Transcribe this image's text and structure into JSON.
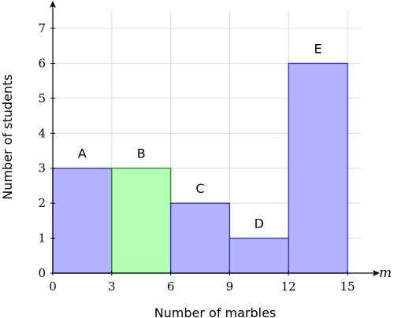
{
  "chart_data": {
    "type": "bar",
    "xlabel": "Number of marbles",
    "ylabel": "Number of students",
    "x_axis_variable": "m",
    "xlim": [
      0,
      15
    ],
    "ylim": [
      0,
      7
    ],
    "x_ticks": [
      0,
      3,
      6,
      9,
      12,
      15
    ],
    "y_ticks": [
      0,
      1,
      2,
      3,
      4,
      5,
      6,
      7
    ],
    "grid": true,
    "bars": [
      {
        "label": "A",
        "x_start": 0,
        "x_end": 3,
        "value": 3,
        "color": "#b3b3ff",
        "edge": "#2a2acf"
      },
      {
        "label": "B",
        "x_start": 3,
        "x_end": 6,
        "value": 3,
        "color": "#b3ffb3",
        "edge": "#1f8c1f"
      },
      {
        "label": "C",
        "x_start": 6,
        "x_end": 9,
        "value": 2,
        "color": "#b3b3ff",
        "edge": "#2a2acf"
      },
      {
        "label": "D",
        "x_start": 9,
        "x_end": 12,
        "value": 1,
        "color": "#b3b3ff",
        "edge": "#2a2acf"
      },
      {
        "label": "E",
        "x_start": 12,
        "x_end": 15,
        "value": 6,
        "color": "#b3b3ff",
        "edge": "#2a2acf"
      }
    ]
  }
}
